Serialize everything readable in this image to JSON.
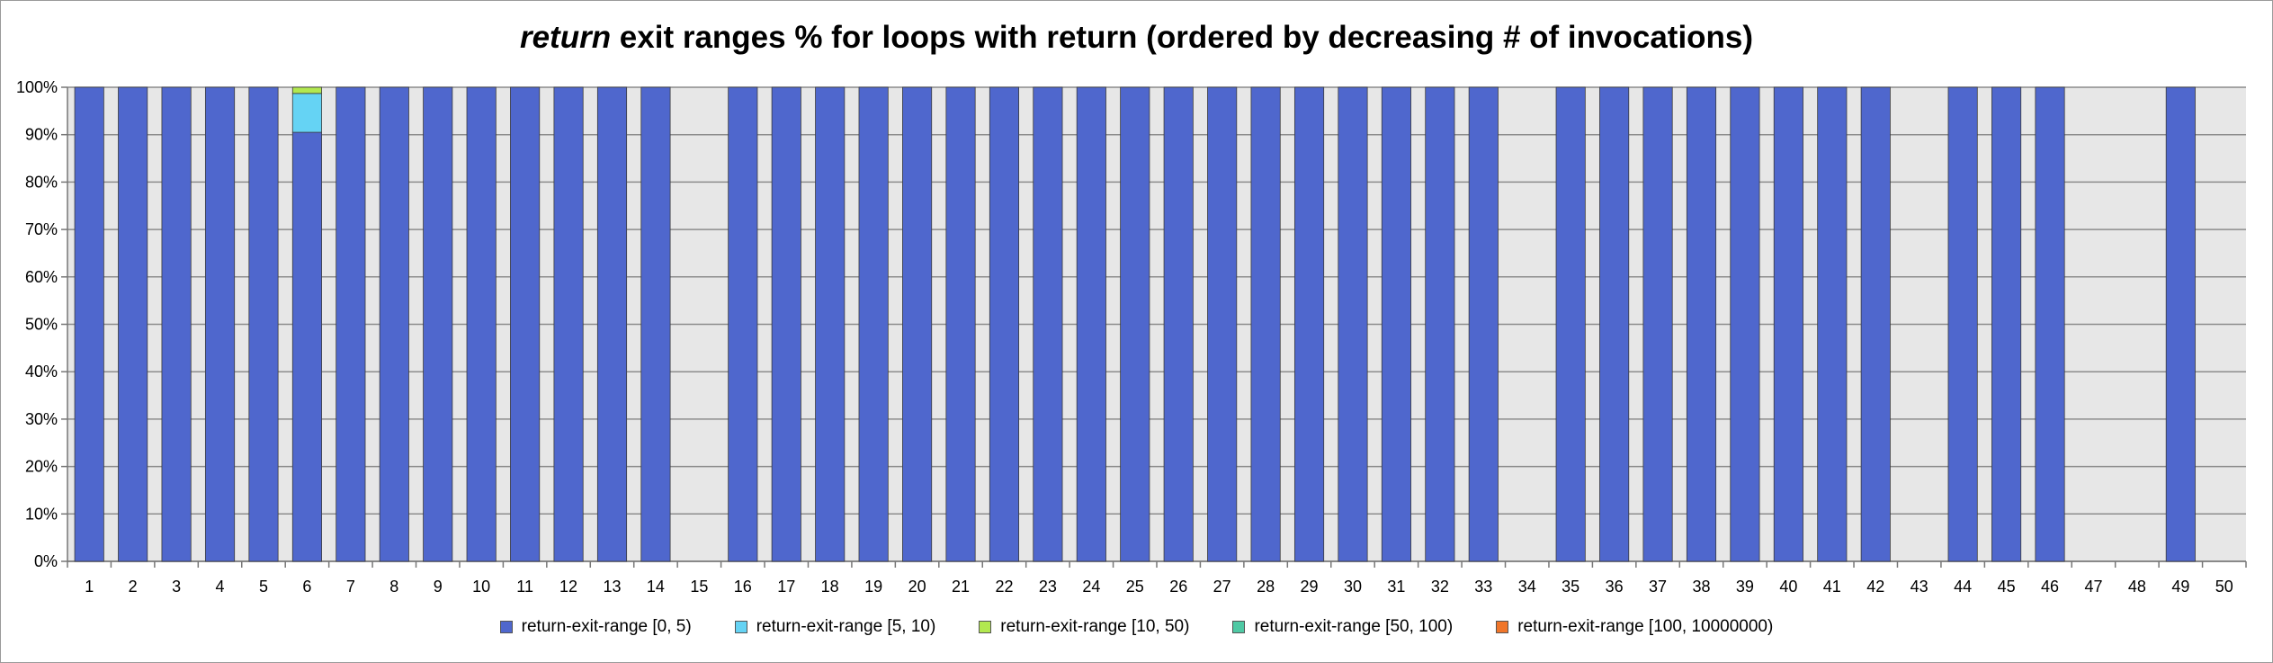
{
  "chart_data": {
    "type": "bar",
    "stacked": true,
    "title_emph": "return",
    "title_rest": " exit ranges % for loops with return (ordered by decreasing # of invocations)",
    "xlabel": "",
    "ylabel": "",
    "ylim": [
      0,
      100
    ],
    "y_tick_labels": [
      "0%",
      "10%",
      "20%",
      "30%",
      "40%",
      "50%",
      "60%",
      "70%",
      "80%",
      "90%",
      "100%"
    ],
    "categories": [
      "1",
      "2",
      "3",
      "4",
      "5",
      "6",
      "7",
      "8",
      "9",
      "10",
      "11",
      "12",
      "13",
      "14",
      "15",
      "16",
      "17",
      "18",
      "19",
      "20",
      "21",
      "22",
      "23",
      "24",
      "25",
      "26",
      "27",
      "28",
      "29",
      "30",
      "31",
      "32",
      "33",
      "34",
      "35",
      "36",
      "37",
      "38",
      "39",
      "40",
      "41",
      "42",
      "43",
      "44",
      "45",
      "46",
      "47",
      "48",
      "49",
      "50"
    ],
    "series": [
      {
        "name": "return-exit-range [0, 5)",
        "color": "#4f67cd",
        "values": [
          100,
          100,
          100,
          100,
          100,
          90.5,
          100,
          100,
          100,
          100,
          100,
          100,
          100,
          100,
          0,
          100,
          100,
          100,
          100,
          100,
          100,
          100,
          100,
          100,
          100,
          100,
          100,
          100,
          100,
          100,
          100,
          100,
          100,
          0,
          100,
          100,
          100,
          100,
          100,
          100,
          100,
          100,
          0,
          100,
          100,
          100,
          0,
          0,
          100,
          0
        ]
      },
      {
        "name": "return-exit-range [5, 10)",
        "color": "#65d3f4",
        "values": [
          0,
          0,
          0,
          0,
          0,
          8.2,
          0,
          0,
          0,
          0,
          0,
          0,
          0,
          0,
          0,
          0,
          0,
          0,
          0,
          0,
          0,
          0,
          0,
          0,
          0,
          0,
          0,
          0,
          0,
          0,
          0,
          0,
          0,
          0,
          0,
          0,
          0,
          0,
          0,
          0,
          0,
          0,
          0,
          0,
          0,
          0,
          0,
          0,
          0,
          0
        ]
      },
      {
        "name": "return-exit-range [10, 50)",
        "color": "#b2e84f",
        "values": [
          0,
          0,
          0,
          0,
          0,
          1.3,
          0,
          0,
          0,
          0,
          0,
          0,
          0,
          0,
          0,
          0,
          0,
          0,
          0,
          0,
          0,
          0,
          0,
          0,
          0,
          0,
          0,
          0,
          0,
          0,
          0,
          0,
          0,
          0,
          0,
          0,
          0,
          0,
          0,
          0,
          0,
          0,
          0,
          0,
          0,
          0,
          0,
          0,
          0,
          0
        ]
      },
      {
        "name": "return-exit-range [50, 100)",
        "color": "#4fc9a4",
        "values": [
          0,
          0,
          0,
          0,
          0,
          0,
          0,
          0,
          0,
          0,
          0,
          0,
          0,
          0,
          0,
          0,
          0,
          0,
          0,
          0,
          0,
          0,
          0,
          0,
          0,
          0,
          0,
          0,
          0,
          0,
          0,
          0,
          0,
          0,
          0,
          0,
          0,
          0,
          0,
          0,
          0,
          0,
          0,
          0,
          0,
          0,
          0,
          0,
          0,
          0
        ]
      },
      {
        "name": "return-exit-range [100, 10000000)",
        "color": "#f0762a",
        "values": [
          0,
          0,
          0,
          0,
          0,
          0,
          0,
          0,
          0,
          0,
          0,
          0,
          0,
          0,
          0,
          0,
          0,
          0,
          0,
          0,
          0,
          0,
          0,
          0,
          0,
          0,
          0,
          0,
          0,
          0,
          0,
          0,
          0,
          0,
          0,
          0,
          0,
          0,
          0,
          0,
          0,
          0,
          0,
          0,
          0,
          0,
          0,
          0,
          0,
          0
        ]
      }
    ],
    "grid": true,
    "legend_position": "bottom"
  }
}
